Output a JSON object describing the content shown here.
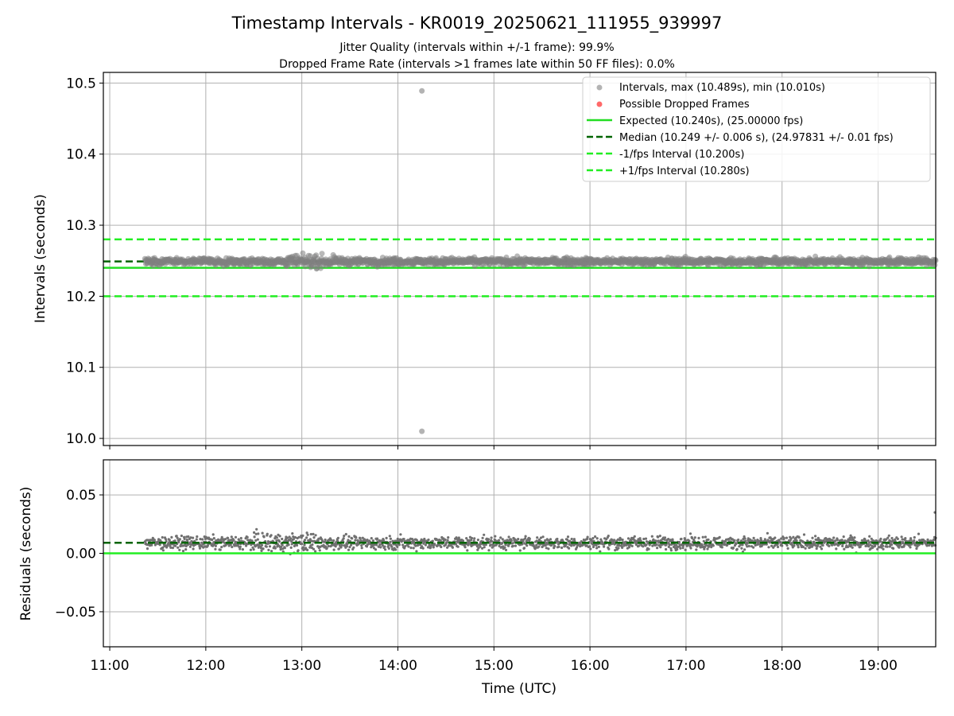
{
  "chart_data": [
    {
      "type": "scatter",
      "title": "Timestamp Intervals - KR0019_20250621_111955_939997",
      "subtitles": [
        "Jitter Quality (intervals within +/-1 frame): 99.9%",
        "Dropped Frame Rate (intervals >1 frames late within 50 FF files): 0.0%"
      ],
      "xlabel": "",
      "ylabel": "Intervals (seconds)",
      "xlim": [
        "10:56",
        "19:36"
      ],
      "ylim": [
        9.99,
        10.515
      ],
      "grid": true,
      "legend_position": "top-right",
      "yticks": [
        "10.0",
        "10.1",
        "10.2",
        "10.3",
        "10.4",
        "10.5"
      ],
      "legend": [
        "Intervals, max (10.489s), min (10.010s)",
        "Possible Dropped Frames",
        "Expected (10.240s), (25.00000 fps)",
        "Median (10.249 +/- 0.006 s), (24.97831 +/- 0.01 fps)",
        "-1/fps Interval (10.200s)",
        "+1/fps Interval (10.280s)"
      ],
      "series": [
        {
          "name": "Intervals, max (10.489s), min (10.010s)",
          "kind": "scatter",
          "color": "#808080",
          "x_range": [
            "11:22",
            "19:36"
          ],
          "center": 10.249,
          "spread": 0.006,
          "outliers": [
            {
              "x": "14:15",
              "y": 10.489
            },
            {
              "x": "14:15",
              "y": 10.01
            }
          ]
        },
        {
          "name": "Possible Dropped Frames",
          "kind": "scatter",
          "color": "#ff4444",
          "points": []
        },
        {
          "name": "Expected (10.240s), (25.00000 fps)",
          "kind": "hline",
          "y": 10.24,
          "color": "#22dd22",
          "style": "solid"
        },
        {
          "name": "Median (10.249 +/- 0.006 s), (24.97831 +/- 0.01 fps)",
          "kind": "hline",
          "y": 10.249,
          "color": "#006400",
          "style": "dashed"
        },
        {
          "name": "-1/fps Interval (10.200s)",
          "kind": "hline",
          "y": 10.2,
          "color": "#22ee22",
          "style": "dashed"
        },
        {
          "name": "+1/fps Interval (10.280s)",
          "kind": "hline",
          "y": 10.28,
          "color": "#22ee22",
          "style": "dashed"
        }
      ]
    },
    {
      "type": "scatter",
      "title": "",
      "xlabel": "Time (UTC)",
      "ylabel": "Residuals (seconds)",
      "xlim": [
        "10:56",
        "19:36"
      ],
      "ylim": [
        -0.08,
        0.08
      ],
      "grid": true,
      "xticks": [
        "11:00",
        "12:00",
        "13:00",
        "14:00",
        "15:00",
        "16:00",
        "17:00",
        "18:00",
        "19:00"
      ],
      "yticks": [
        "0.05",
        "0.00",
        "−0.05"
      ],
      "series": [
        {
          "name": "",
          "kind": "scatter",
          "color": "#707070",
          "x_range": [
            "11:22",
            "19:36"
          ],
          "center": 0.009,
          "spread": 0.007,
          "extreme": {
            "x": "19:36",
            "y": 0.035
          }
        },
        {
          "name": "",
          "kind": "hline",
          "y": 0.0,
          "color": "#22ee22",
          "style": "solid"
        },
        {
          "name": "",
          "kind": "hline",
          "y": 0.009,
          "color": "#006400",
          "style": "dashed"
        }
      ]
    }
  ]
}
